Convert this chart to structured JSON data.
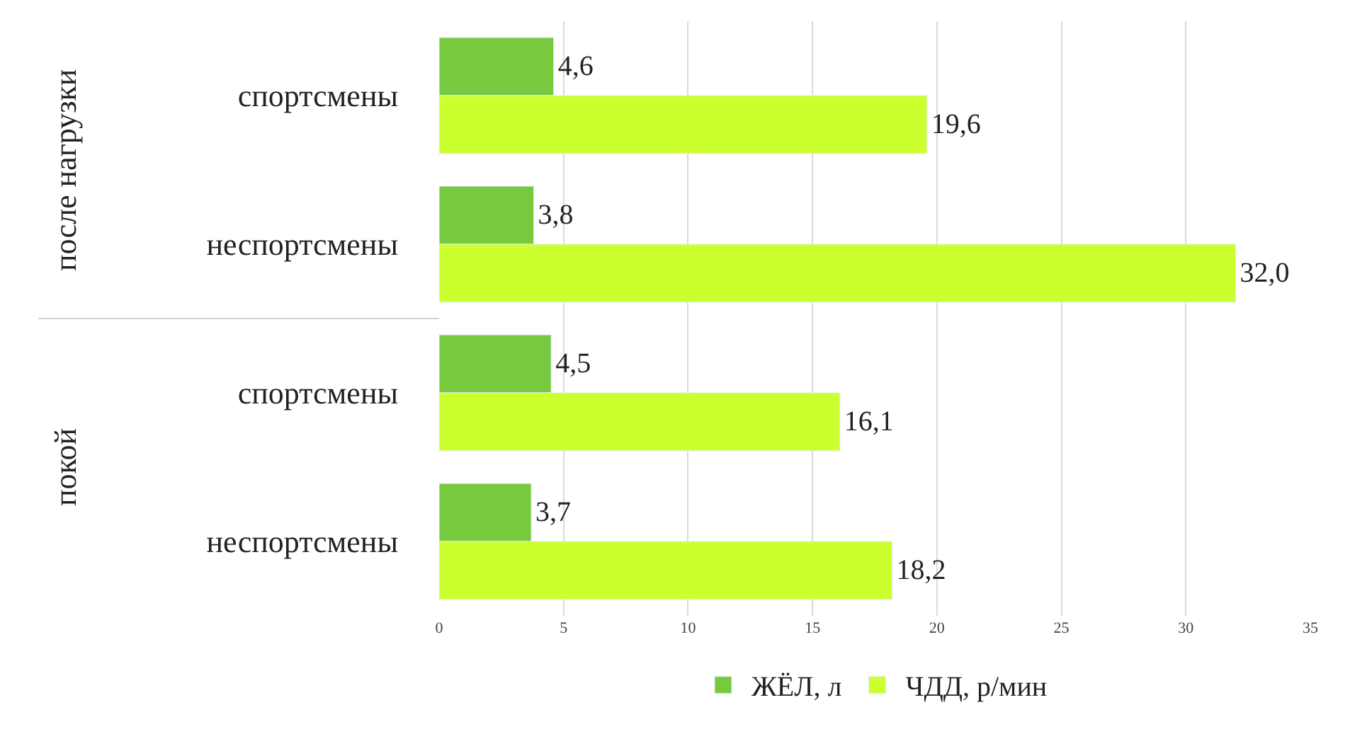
{
  "chart_data": {
    "type": "bar",
    "orientation": "horizontal",
    "categories": [
      "спортсмены",
      "неспортсмены",
      "спортсмены",
      "неспортсмены"
    ],
    "series": [
      {
        "name": "ЖЁЛ, л",
        "color": "#77c93e",
        "values": [
          4.6,
          3.8,
          4.5,
          3.7
        ],
        "value_labels": [
          "4,6",
          "3,8",
          "4,5",
          "3,7"
        ]
      },
      {
        "name": "ЧДД, р/мин",
        "color": "#ccff2e",
        "values": [
          19.6,
          32.0,
          16.1,
          18.2
        ],
        "value_labels": [
          "19,6",
          "32,0",
          "16,1",
          "18,2"
        ]
      }
    ],
    "annotations": [
      "после нагрузки",
      "покой"
    ],
    "xlim": [
      0,
      35
    ],
    "xticks": [
      0,
      5,
      10,
      15,
      20,
      25,
      30,
      35
    ],
    "grid": "x",
    "legend": "bottom"
  }
}
